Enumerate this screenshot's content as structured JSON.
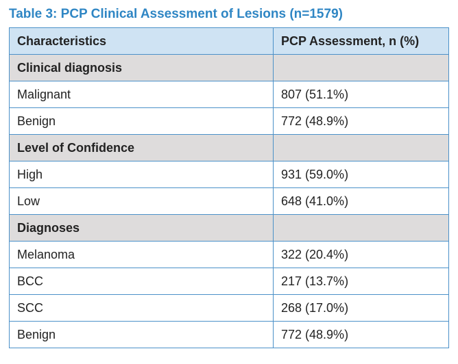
{
  "title": "Table 3: PCP Clinical Assessment of Lesions (n=1579)",
  "table": {
    "headers": [
      "Characteristics",
      "PCP Assessment, n (%)"
    ],
    "rows": [
      {
        "type": "section",
        "label": "Clinical diagnosis",
        "value": ""
      },
      {
        "type": "data",
        "label": "Malignant",
        "value": "807 (51.1%)"
      },
      {
        "type": "data",
        "label": "Benign",
        "value": "772 (48.9%)"
      },
      {
        "type": "section",
        "label": "Level of Confidence",
        "value": ""
      },
      {
        "type": "data",
        "label": "High",
        "value": "931 (59.0%)"
      },
      {
        "type": "data",
        "label": "Low",
        "value": "648 (41.0%)"
      },
      {
        "type": "section",
        "label": "Diagnoses",
        "value": ""
      },
      {
        "type": "data",
        "label": "Melanoma",
        "value": "322 (20.4%)"
      },
      {
        "type": "data",
        "label": "BCC",
        "value": "217 (13.7%)"
      },
      {
        "type": "data",
        "label": "SCC",
        "value": "268 (17.0%)"
      },
      {
        "type": "data",
        "label": "Benign",
        "value": "772 (48.9%)"
      }
    ]
  },
  "colors": {
    "title": "#2f86c4",
    "header_bg": "#cfe3f3",
    "section_bg": "#dedcdc",
    "border": "#4a90c8"
  }
}
